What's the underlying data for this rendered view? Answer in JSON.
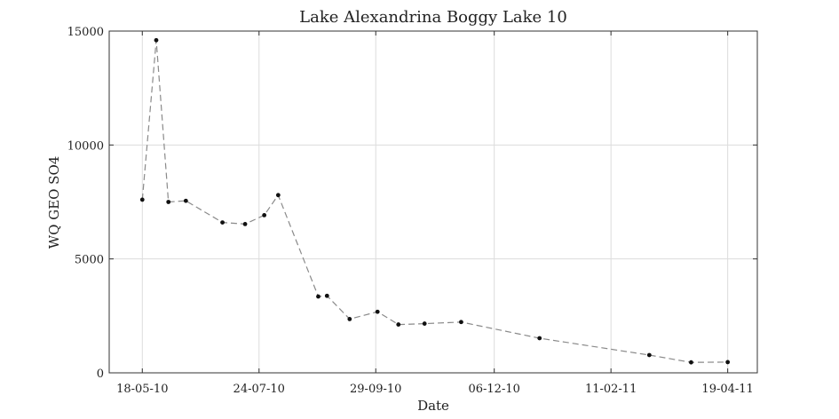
{
  "chart_data": {
    "type": "line",
    "title": "Lake Alexandrina Boggy Lake 10",
    "xlabel": "Date",
    "ylabel": "WQ GEO SO4",
    "x_type": "date",
    "xlim": [
      "2010-04-29",
      "2011-05-06"
    ],
    "ylim": [
      0,
      15000
    ],
    "y_ticks": [
      0,
      5000,
      10000,
      15000
    ],
    "y_tick_labels": [
      "0",
      "5000",
      "10000",
      "15000"
    ],
    "x_ticks": [
      "2010-05-18",
      "2010-07-24",
      "2010-09-29",
      "2010-12-06",
      "2011-02-11",
      "2011-04-19"
    ],
    "x_tick_labels": [
      "18-05-10",
      "24-07-10",
      "29-09-10",
      "06-12-10",
      "11-02-11",
      "19-04-11"
    ],
    "grid": true,
    "series": [
      {
        "line_style": "dashed",
        "line_color": "#8a8a8a",
        "marker_color": "#111111",
        "points": [
          {
            "x": "2010-05-18",
            "y": 7600
          },
          {
            "x": "2010-05-26",
            "y": 14600
          },
          {
            "x": "2010-06-02",
            "y": 7500
          },
          {
            "x": "2010-06-12",
            "y": 7550
          },
          {
            "x": "2010-07-03",
            "y": 6600
          },
          {
            "x": "2010-07-16",
            "y": 6530
          },
          {
            "x": "2010-07-27",
            "y": 6920
          },
          {
            "x": "2010-08-04",
            "y": 7800
          },
          {
            "x": "2010-08-27",
            "y": 3350
          },
          {
            "x": "2010-09-01",
            "y": 3380
          },
          {
            "x": "2010-09-14",
            "y": 2360
          },
          {
            "x": "2010-09-30",
            "y": 2680
          },
          {
            "x": "2010-10-12",
            "y": 2120
          },
          {
            "x": "2010-10-27",
            "y": 2160
          },
          {
            "x": "2010-11-17",
            "y": 2230
          },
          {
            "x": "2011-01-01",
            "y": 1520
          },
          {
            "x": "2011-03-05",
            "y": 780
          },
          {
            "x": "2011-03-29",
            "y": 460
          },
          {
            "x": "2011-04-19",
            "y": 470
          }
        ]
      }
    ]
  }
}
